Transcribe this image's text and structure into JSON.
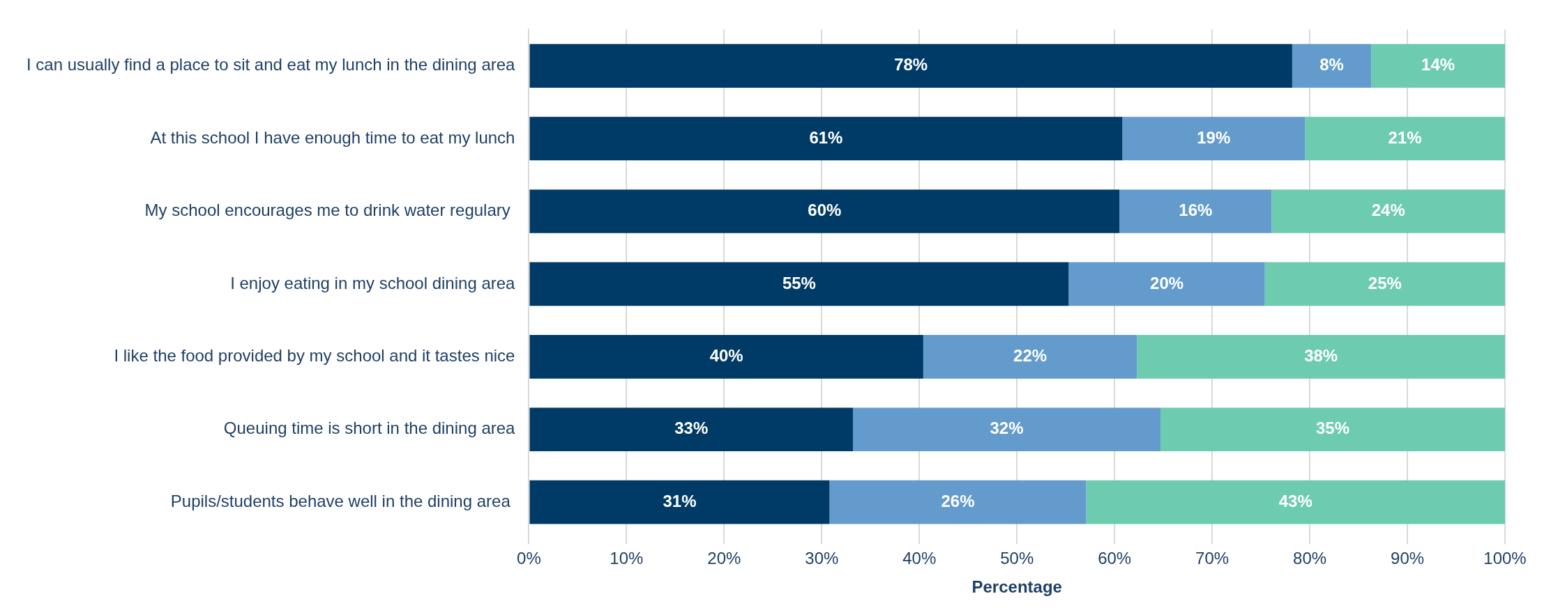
{
  "chart_data": {
    "type": "bar",
    "orientation": "horizontal",
    "stacked": true,
    "xlabel": "Percentage",
    "categories": [
      "I can usually find a place to sit and eat my lunch in the dining area",
      "At this school I have enough time to eat my lunch",
      "My school encourages me to drink water regulary ",
      "I enjoy eating in my school dining area",
      "I like the food provided by my school and it tastes nice",
      "Queuing time is short in the dining area",
      "Pupils/students behave well in the dining area "
    ],
    "series": [
      {
        "color": "#003b67",
        "values": [
          78.2,
          60.8,
          60.5,
          55.3,
          40.4,
          33.2,
          30.8
        ],
        "value_labels": [
          "78%",
          "61%",
          "60%",
          "55%",
          "40%",
          "33%",
          "31%"
        ]
      },
      {
        "color": "#639bcc",
        "values": [
          8.1,
          18.7,
          15.6,
          20.1,
          21.9,
          31.5,
          26.3
        ],
        "value_labels": [
          "8%",
          "19%",
          "16%",
          "20%",
          "22%",
          "32%",
          "26%"
        ]
      },
      {
        "color": "#6dcbb0",
        "values": [
          13.7,
          20.5,
          23.9,
          24.6,
          37.7,
          35.3,
          42.9
        ],
        "value_labels": [
          "14%",
          "21%",
          "24%",
          "25%",
          "38%",
          "35%",
          "43%"
        ]
      }
    ],
    "xlim": [
      0,
      100
    ],
    "xticks": [
      {
        "value": 0,
        "label": "0%"
      },
      {
        "value": 10,
        "label": "10%"
      },
      {
        "value": 20,
        "label": "20%"
      },
      {
        "value": 30,
        "label": "30%"
      },
      {
        "value": 40,
        "label": "40%"
      },
      {
        "value": 50,
        "label": "50%"
      },
      {
        "value": 60,
        "label": "60%"
      },
      {
        "value": 70,
        "label": "70%"
      },
      {
        "value": 80,
        "label": "80%"
      },
      {
        "value": 90,
        "label": "90%"
      },
      {
        "value": 100,
        "label": "100%"
      }
    ],
    "grid": "x",
    "legend": false
  }
}
